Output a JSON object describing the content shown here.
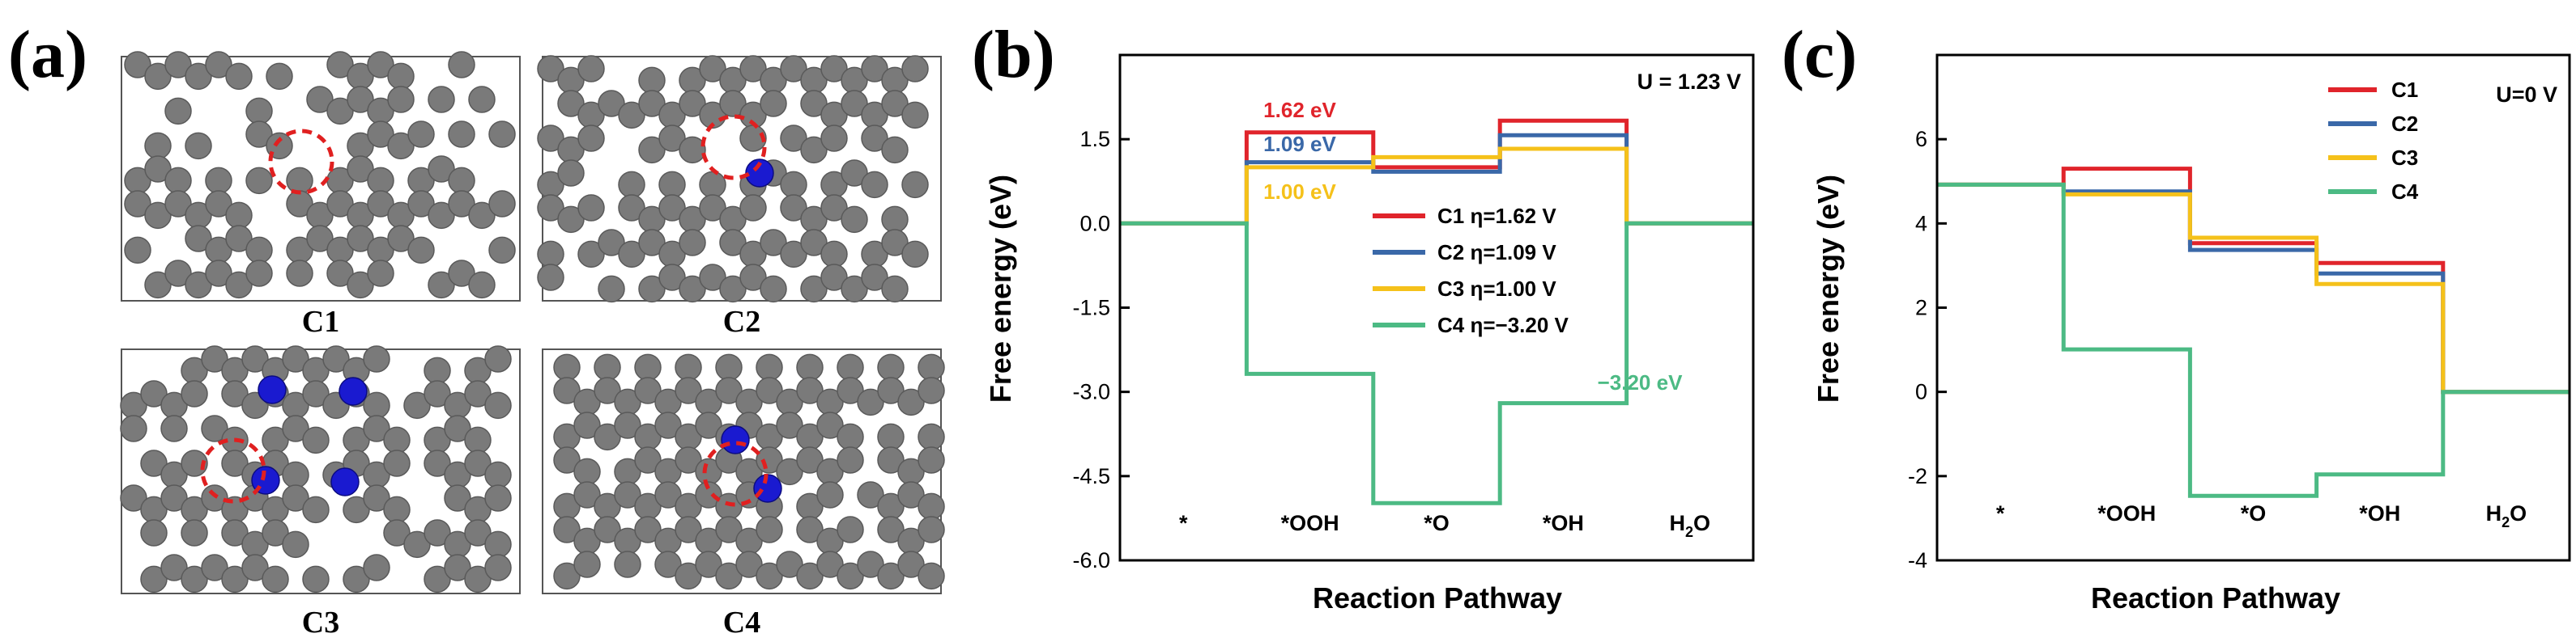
{
  "panel_a": {
    "label": "(a)",
    "structures": [
      {
        "label": "C1",
        "highlight": true
      },
      {
        "label": "C2",
        "highlight": true
      },
      {
        "label": "C3",
        "highlight": true
      },
      {
        "label": "C4",
        "highlight": true
      }
    ],
    "colors": {
      "carbon": "#7a7a7a",
      "nitrogen": "#1a1ad0",
      "highlight": "#e02020"
    }
  },
  "chart_data": [
    {
      "panel_label": "(b)",
      "type": "line",
      "subtype": "free-energy-step-diagram",
      "title": "",
      "condition": "U = 1.23 V",
      "xlabel": "Reaction Pathway",
      "ylabel": "Free energy (eV)",
      "categories": [
        "*",
        "*OOH",
        "*O",
        "*OH",
        "H2O"
      ],
      "category_display": [
        {
          "main": "*",
          "sub": ""
        },
        {
          "main": "*OOH",
          "sub": ""
        },
        {
          "main": "*O",
          "sub": ""
        },
        {
          "main": "*OH",
          "sub": ""
        },
        {
          "main": "H",
          "sub": "2",
          "tail": "O"
        }
      ],
      "ylim": [
        -6.0,
        3.0
      ],
      "yticks": [
        -6.0,
        -4.5,
        -3.0,
        -1.5,
        0.0,
        1.5
      ],
      "ytick_labels": [
        "-6.0",
        "-4.5",
        "-3.0",
        "-1.5",
        "0.0",
        "1.5"
      ],
      "legend_position": "center",
      "series": [
        {
          "name": "C1",
          "legend": "C1 η=1.62 V",
          "color": "#e0242b",
          "values": [
            0.0,
            1.62,
            1.0,
            1.83,
            0.0
          ]
        },
        {
          "name": "C2",
          "legend": "C2 η=1.09 V",
          "color": "#3a68a8",
          "values": [
            0.0,
            1.09,
            0.92,
            1.57,
            0.0
          ]
        },
        {
          "name": "C3",
          "legend": "C3 η=1.00 V",
          "color": "#f5c11a",
          "values": [
            0.0,
            1.0,
            1.18,
            1.33,
            0.0
          ]
        },
        {
          "name": "C4",
          "legend": "C4 η=−3.20 V",
          "color": "#4cba84",
          "values": [
            0.0,
            -2.68,
            -4.98,
            -3.2,
            0.0
          ]
        }
      ],
      "annotations": [
        {
          "text": "1.62 eV",
          "color": "#e0242b"
        },
        {
          "text": "1.09 eV",
          "color": "#3a68a8"
        },
        {
          "text": "1.00 eV",
          "color": "#f5c11a"
        },
        {
          "text": "−3.20 eV",
          "color": "#4cba84"
        }
      ]
    },
    {
      "panel_label": "(c)",
      "type": "line",
      "subtype": "free-energy-step-diagram",
      "title": "",
      "condition": "U=0 V",
      "xlabel": "Reaction Pathway",
      "ylabel": "Free energy (eV)",
      "categories": [
        "*",
        "*OOH",
        "*O",
        "*OH",
        "H2O"
      ],
      "category_display": [
        {
          "main": "*",
          "sub": ""
        },
        {
          "main": "*OOH",
          "sub": ""
        },
        {
          "main": "*O",
          "sub": ""
        },
        {
          "main": "*OH",
          "sub": ""
        },
        {
          "main": "H",
          "sub": "2",
          "tail": "O"
        }
      ],
      "ylim": [
        -4,
        8
      ],
      "yticks": [
        -4,
        -2,
        0,
        2,
        4,
        6
      ],
      "ytick_labels": [
        "-4",
        "-2",
        "0",
        "2",
        "4",
        "6"
      ],
      "legend_position": "top-right",
      "series": [
        {
          "name": "C1",
          "legend": "C1",
          "color": "#e0242b",
          "values": [
            4.92,
            5.3,
            3.53,
            3.06,
            0.0
          ]
        },
        {
          "name": "C2",
          "legend": "C2",
          "color": "#3a68a8",
          "values": [
            4.92,
            4.76,
            3.37,
            2.81,
            0.0
          ]
        },
        {
          "name": "C3",
          "legend": "C3",
          "color": "#f5c11a",
          "values": [
            4.92,
            4.69,
            3.66,
            2.56,
            0.0
          ]
        },
        {
          "name": "C4",
          "legend": "C4",
          "color": "#4cba84",
          "values": [
            4.92,
            1.01,
            -2.47,
            -1.96,
            0.0
          ]
        }
      ],
      "annotations": []
    }
  ]
}
